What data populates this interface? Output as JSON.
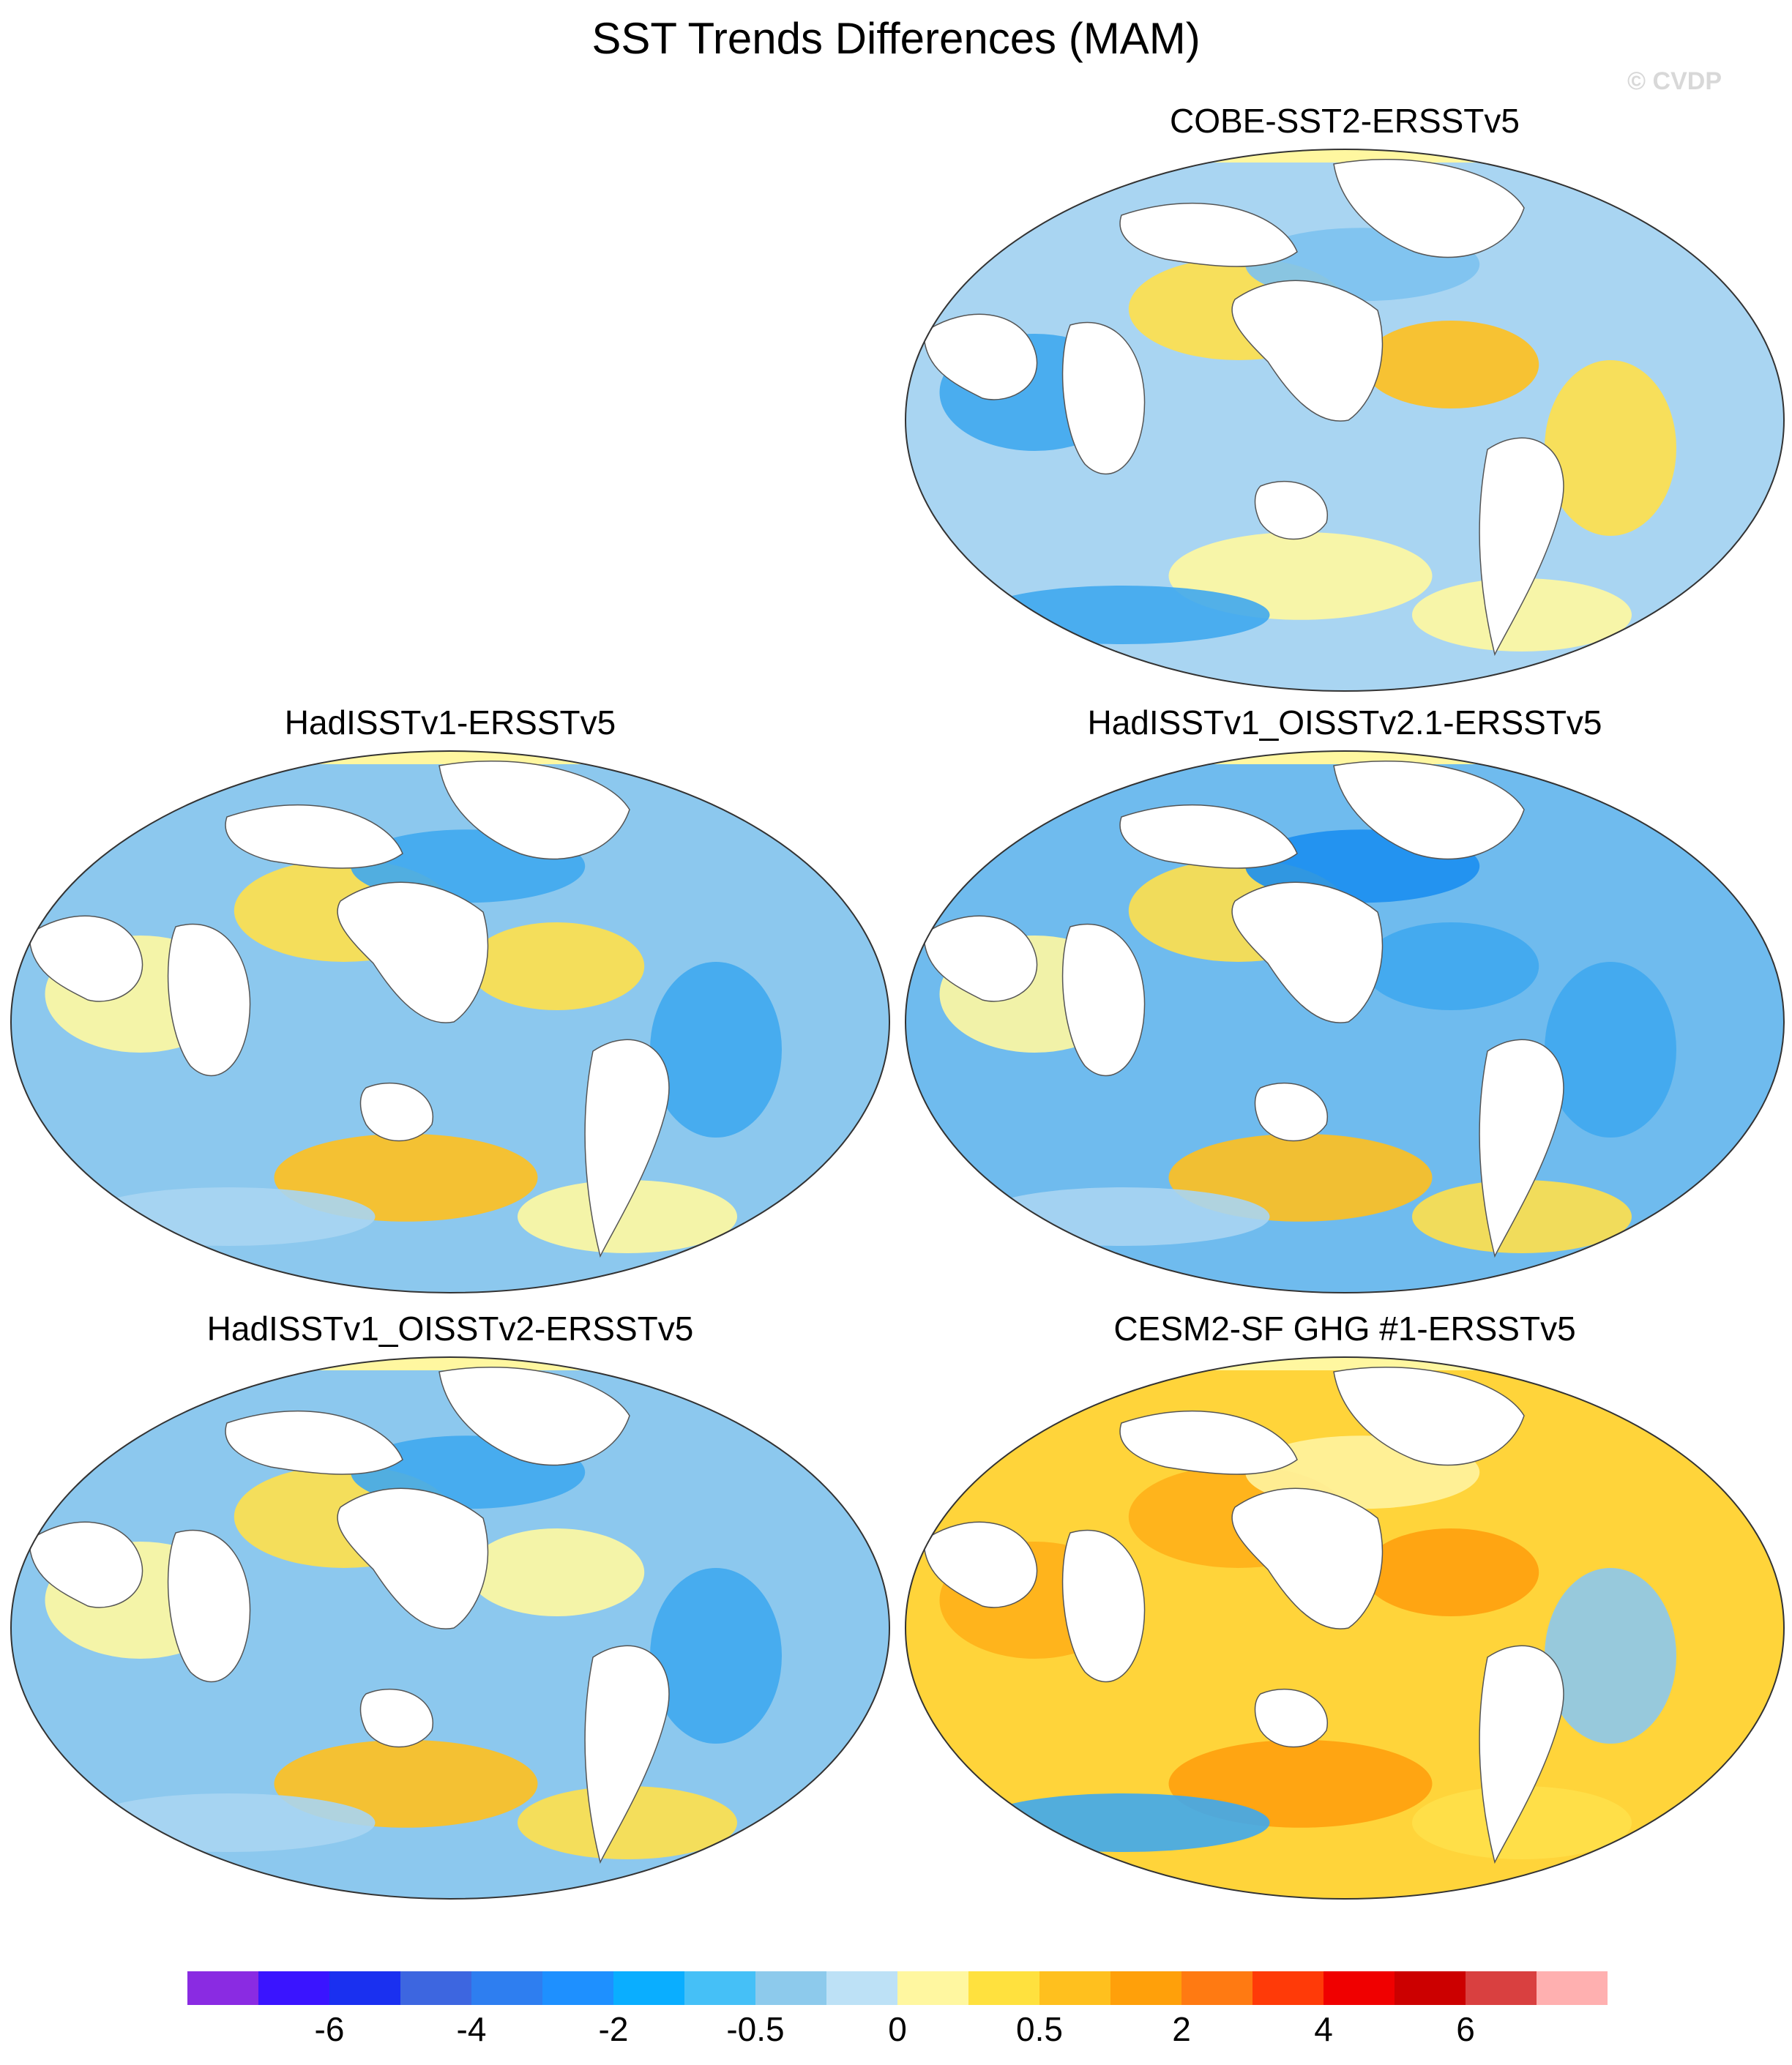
{
  "title": "SST Trends Differences (MAM)",
  "watermark": "© CVDP",
  "panels": [
    {
      "id": "cobe",
      "title": "COBE-SST2-ERSSTv5",
      "base": "#a9d5f2",
      "blobs": [
        "#ffe04a",
        "#ffc01e",
        "#7cc2f0",
        "#3fa8ee",
        "#fff8a0",
        "#ffe04a",
        "#3fa8ee",
        "#fff8a0"
      ]
    },
    {
      "id": "had",
      "title": "HadISSTv1-ERSSTv5",
      "base": "#8cc8ee",
      "blobs": [
        "#ffe04a",
        "#ffe04a",
        "#3fa8ee",
        "#fff8a0",
        "#ffc01e",
        "#3fa8ee",
        "#a9d5f2",
        "#fff8a0"
      ]
    },
    {
      "id": "had21",
      "title": "HadISSTv1_OISSTv2.1-ERSSTv5",
      "base": "#6fbbee",
      "blobs": [
        "#ffe04a",
        "#3fa8ee",
        "#1b8ff0",
        "#fff8a0",
        "#ffc01e",
        "#3fa8ee",
        "#a9d5f2",
        "#ffe04a"
      ]
    },
    {
      "id": "had2",
      "title": "HadISSTv1_OISSTv2-ERSSTv5",
      "base": "#8cc8ee",
      "blobs": [
        "#ffe04a",
        "#fff8a0",
        "#3fa8ee",
        "#fff8a0",
        "#ffc01e",
        "#3fa8ee",
        "#a9d5f2",
        "#ffe04a"
      ]
    },
    {
      "id": "cesm",
      "title": "CESM2-SF GHG #1-ERSSTv5",
      "base": "#ffd43a",
      "blobs": [
        "#ffb01a",
        "#ffa00e",
        "#fff3a0",
        "#ffb01a",
        "#ffa00e",
        "#8cc8ee",
        "#3fa8ee",
        "#ffe04a"
      ]
    }
  ],
  "colorbar": {
    "colors": [
      "#8a2be2",
      "#3a14ff",
      "#1a30f0",
      "#3d66e0",
      "#2e7ef0",
      "#1e90ff",
      "#0aaeff",
      "#45c0f7",
      "#8dcaec",
      "#bde1f6",
      "#fff7a0",
      "#ffe13e",
      "#ffc01e",
      "#ffa00a",
      "#ff7a12",
      "#ff3a08",
      "#f00000",
      "#cc0000",
      "#d94040",
      "#ffb0b0"
    ],
    "labels": [
      "-6",
      "-4",
      "-2",
      "-0.5",
      "0",
      "0.5",
      "2",
      "4",
      "6"
    ],
    "label_positions": [
      2,
      4,
      6,
      8,
      10,
      12,
      14,
      16,
      18
    ]
  }
}
